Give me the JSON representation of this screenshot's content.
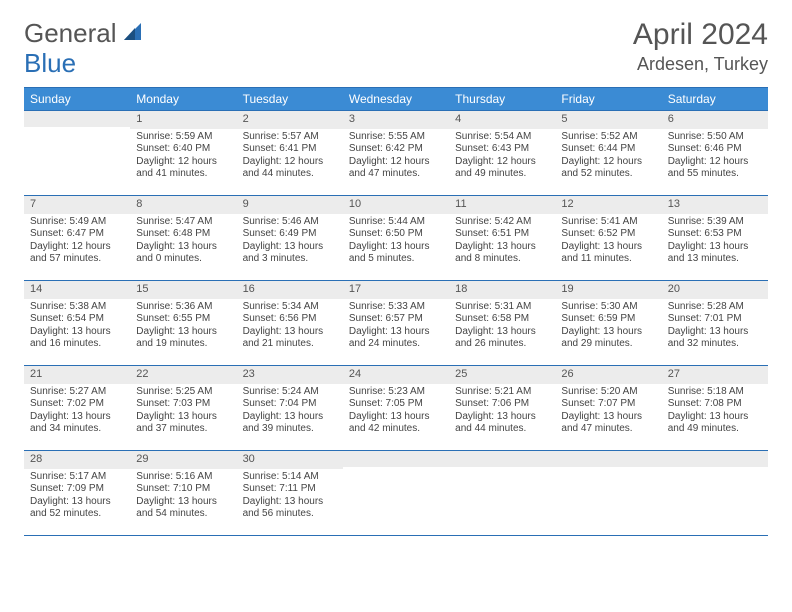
{
  "brand": {
    "part1": "General",
    "part2": "Blue"
  },
  "title": {
    "month": "April 2024",
    "location": "Ardesen, Turkey"
  },
  "colors": {
    "header_bg": "#3b8bd4",
    "border": "#2a6fb5",
    "daynum_bg": "#ececec",
    "text": "#4a4a4a",
    "brand_blue": "#2a6fb5"
  },
  "dayNames": [
    "Sunday",
    "Monday",
    "Tuesday",
    "Wednesday",
    "Thursday",
    "Friday",
    "Saturday"
  ],
  "weeks": [
    [
      {
        "blank": true
      },
      {
        "n": "1",
        "sr": "Sunrise: 5:59 AM",
        "ss": "Sunset: 6:40 PM",
        "dl": "Daylight: 12 hours and 41 minutes."
      },
      {
        "n": "2",
        "sr": "Sunrise: 5:57 AM",
        "ss": "Sunset: 6:41 PM",
        "dl": "Daylight: 12 hours and 44 minutes."
      },
      {
        "n": "3",
        "sr": "Sunrise: 5:55 AM",
        "ss": "Sunset: 6:42 PM",
        "dl": "Daylight: 12 hours and 47 minutes."
      },
      {
        "n": "4",
        "sr": "Sunrise: 5:54 AM",
        "ss": "Sunset: 6:43 PM",
        "dl": "Daylight: 12 hours and 49 minutes."
      },
      {
        "n": "5",
        "sr": "Sunrise: 5:52 AM",
        "ss": "Sunset: 6:44 PM",
        "dl": "Daylight: 12 hours and 52 minutes."
      },
      {
        "n": "6",
        "sr": "Sunrise: 5:50 AM",
        "ss": "Sunset: 6:46 PM",
        "dl": "Daylight: 12 hours and 55 minutes."
      }
    ],
    [
      {
        "n": "7",
        "sr": "Sunrise: 5:49 AM",
        "ss": "Sunset: 6:47 PM",
        "dl": "Daylight: 12 hours and 57 minutes."
      },
      {
        "n": "8",
        "sr": "Sunrise: 5:47 AM",
        "ss": "Sunset: 6:48 PM",
        "dl": "Daylight: 13 hours and 0 minutes."
      },
      {
        "n": "9",
        "sr": "Sunrise: 5:46 AM",
        "ss": "Sunset: 6:49 PM",
        "dl": "Daylight: 13 hours and 3 minutes."
      },
      {
        "n": "10",
        "sr": "Sunrise: 5:44 AM",
        "ss": "Sunset: 6:50 PM",
        "dl": "Daylight: 13 hours and 5 minutes."
      },
      {
        "n": "11",
        "sr": "Sunrise: 5:42 AM",
        "ss": "Sunset: 6:51 PM",
        "dl": "Daylight: 13 hours and 8 minutes."
      },
      {
        "n": "12",
        "sr": "Sunrise: 5:41 AM",
        "ss": "Sunset: 6:52 PM",
        "dl": "Daylight: 13 hours and 11 minutes."
      },
      {
        "n": "13",
        "sr": "Sunrise: 5:39 AM",
        "ss": "Sunset: 6:53 PM",
        "dl": "Daylight: 13 hours and 13 minutes."
      }
    ],
    [
      {
        "n": "14",
        "sr": "Sunrise: 5:38 AM",
        "ss": "Sunset: 6:54 PM",
        "dl": "Daylight: 13 hours and 16 minutes."
      },
      {
        "n": "15",
        "sr": "Sunrise: 5:36 AM",
        "ss": "Sunset: 6:55 PM",
        "dl": "Daylight: 13 hours and 19 minutes."
      },
      {
        "n": "16",
        "sr": "Sunrise: 5:34 AM",
        "ss": "Sunset: 6:56 PM",
        "dl": "Daylight: 13 hours and 21 minutes."
      },
      {
        "n": "17",
        "sr": "Sunrise: 5:33 AM",
        "ss": "Sunset: 6:57 PM",
        "dl": "Daylight: 13 hours and 24 minutes."
      },
      {
        "n": "18",
        "sr": "Sunrise: 5:31 AM",
        "ss": "Sunset: 6:58 PM",
        "dl": "Daylight: 13 hours and 26 minutes."
      },
      {
        "n": "19",
        "sr": "Sunrise: 5:30 AM",
        "ss": "Sunset: 6:59 PM",
        "dl": "Daylight: 13 hours and 29 minutes."
      },
      {
        "n": "20",
        "sr": "Sunrise: 5:28 AM",
        "ss": "Sunset: 7:01 PM",
        "dl": "Daylight: 13 hours and 32 minutes."
      }
    ],
    [
      {
        "n": "21",
        "sr": "Sunrise: 5:27 AM",
        "ss": "Sunset: 7:02 PM",
        "dl": "Daylight: 13 hours and 34 minutes."
      },
      {
        "n": "22",
        "sr": "Sunrise: 5:25 AM",
        "ss": "Sunset: 7:03 PM",
        "dl": "Daylight: 13 hours and 37 minutes."
      },
      {
        "n": "23",
        "sr": "Sunrise: 5:24 AM",
        "ss": "Sunset: 7:04 PM",
        "dl": "Daylight: 13 hours and 39 minutes."
      },
      {
        "n": "24",
        "sr": "Sunrise: 5:23 AM",
        "ss": "Sunset: 7:05 PM",
        "dl": "Daylight: 13 hours and 42 minutes."
      },
      {
        "n": "25",
        "sr": "Sunrise: 5:21 AM",
        "ss": "Sunset: 7:06 PM",
        "dl": "Daylight: 13 hours and 44 minutes."
      },
      {
        "n": "26",
        "sr": "Sunrise: 5:20 AM",
        "ss": "Sunset: 7:07 PM",
        "dl": "Daylight: 13 hours and 47 minutes."
      },
      {
        "n": "27",
        "sr": "Sunrise: 5:18 AM",
        "ss": "Sunset: 7:08 PM",
        "dl": "Daylight: 13 hours and 49 minutes."
      }
    ],
    [
      {
        "n": "28",
        "sr": "Sunrise: 5:17 AM",
        "ss": "Sunset: 7:09 PM",
        "dl": "Daylight: 13 hours and 52 minutes."
      },
      {
        "n": "29",
        "sr": "Sunrise: 5:16 AM",
        "ss": "Sunset: 7:10 PM",
        "dl": "Daylight: 13 hours and 54 minutes."
      },
      {
        "n": "30",
        "sr": "Sunrise: 5:14 AM",
        "ss": "Sunset: 7:11 PM",
        "dl": "Daylight: 13 hours and 56 minutes."
      },
      {
        "blank": true
      },
      {
        "blank": true
      },
      {
        "blank": true
      },
      {
        "blank": true
      }
    ]
  ]
}
